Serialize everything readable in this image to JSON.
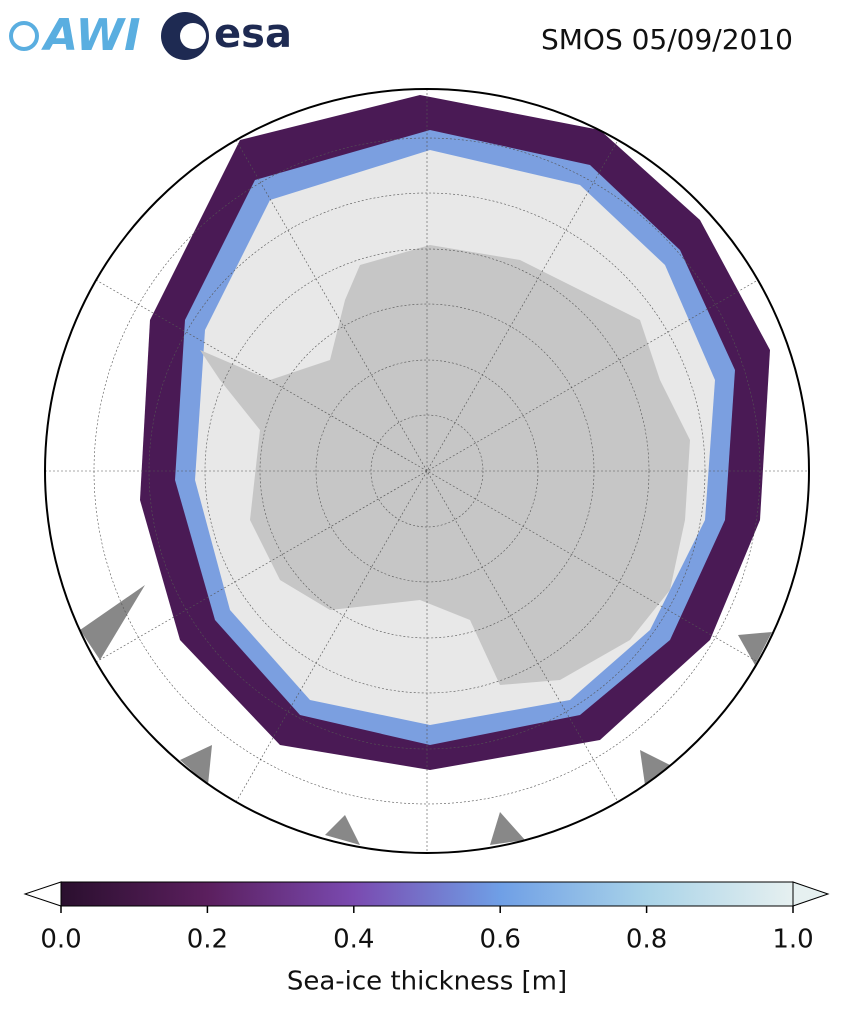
{
  "header": {
    "logos": [
      "AWI",
      "esa"
    ],
    "title": "SMOS 05/09/2010"
  },
  "colorbar": {
    "label": "Sea-ice thickness [m]",
    "lim": [
      0,
      1
    ],
    "ticks": [
      {
        "value": 0,
        "label": "0.0"
      },
      {
        "value": 0.2,
        "label": "0.2"
      },
      {
        "value": 0.4,
        "label": "0.4"
      },
      {
        "value": 0.6,
        "label": "0.6"
      },
      {
        "value": 0.8,
        "label": "0.8"
      },
      {
        "value": 1,
        "label": "1.0"
      }
    ],
    "colors": [
      "#2a0f2e",
      "#5b1f5e",
      "#7a4ab0",
      "#6f9fe6",
      "#a9d3e8",
      "#e6f0f0"
    ]
  }
}
